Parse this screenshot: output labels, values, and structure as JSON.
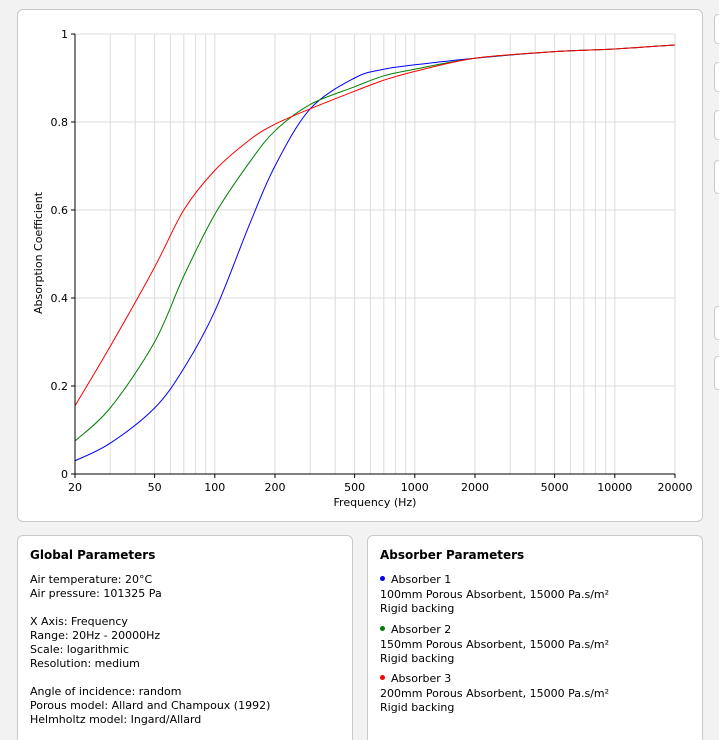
{
  "chart_data": {
    "type": "line",
    "xlabel": "Frequency (Hz)",
    "ylabel": "Absorption Coefficient",
    "xscale": "log",
    "xlim": [
      20,
      20000
    ],
    "ylim": [
      0,
      1
    ],
    "grid": true,
    "x_ticks": [
      "20",
      "50",
      "100",
      "200",
      "500",
      "1000",
      "2000",
      "5000",
      "10000",
      "20000"
    ],
    "y_ticks": [
      "0",
      "0.2",
      "0.4",
      "0.6",
      "0.8",
      "1"
    ],
    "x": [
      20,
      30,
      50,
      70,
      100,
      150,
      200,
      300,
      500,
      700,
      1000,
      2000,
      5000,
      10000,
      20000
    ],
    "series": [
      {
        "color": "#0000ff",
        "values": [
          0.03,
          0.07,
          0.15,
          0.24,
          0.37,
          0.57,
          0.7,
          0.83,
          0.9,
          0.92,
          0.93,
          0.945,
          0.96,
          0.966,
          0.975
        ]
      },
      {
        "color": "#008000",
        "values": [
          0.075,
          0.15,
          0.3,
          0.45,
          0.59,
          0.71,
          0.78,
          0.84,
          0.88,
          0.905,
          0.92,
          0.945,
          0.96,
          0.966,
          0.975
        ]
      },
      {
        "color": "#ff0000",
        "values": [
          0.155,
          0.29,
          0.47,
          0.6,
          0.69,
          0.76,
          0.795,
          0.83,
          0.87,
          0.895,
          0.915,
          0.945,
          0.96,
          0.966,
          0.975
        ]
      }
    ]
  },
  "global": {
    "title": "Global Parameters",
    "air_temp": "Air temperature: 20°C",
    "air_pressure": "Air pressure: 101325 Pa",
    "x_axis": "X Axis: Frequency",
    "range": "Range: 20Hz - 20000Hz",
    "scale": "Scale: logarithmic",
    "resolution": "Resolution: medium",
    "angle": "Angle of incidence: random",
    "porous_model": "Porous model: Allard and Champoux (1992)",
    "helmholtz_model": "Helmholtz model: Ingard/Allard"
  },
  "absorbers": {
    "title": "Absorber Parameters",
    "items": [
      {
        "name": "Absorber 1",
        "desc": "100mm Porous Absorbent, 15000 Pa.s/m²",
        "backing": "Rigid backing",
        "color": "#0000ff"
      },
      {
        "name": "Absorber 2",
        "desc": "150mm Porous Absorbent, 15000 Pa.s/m²",
        "backing": "Rigid backing",
        "color": "#008000"
      },
      {
        "name": "Absorber 3",
        "desc": "200mm Porous Absorbent, 15000 Pa.s/m²",
        "backing": "Rigid backing",
        "color": "#ff0000"
      }
    ]
  }
}
